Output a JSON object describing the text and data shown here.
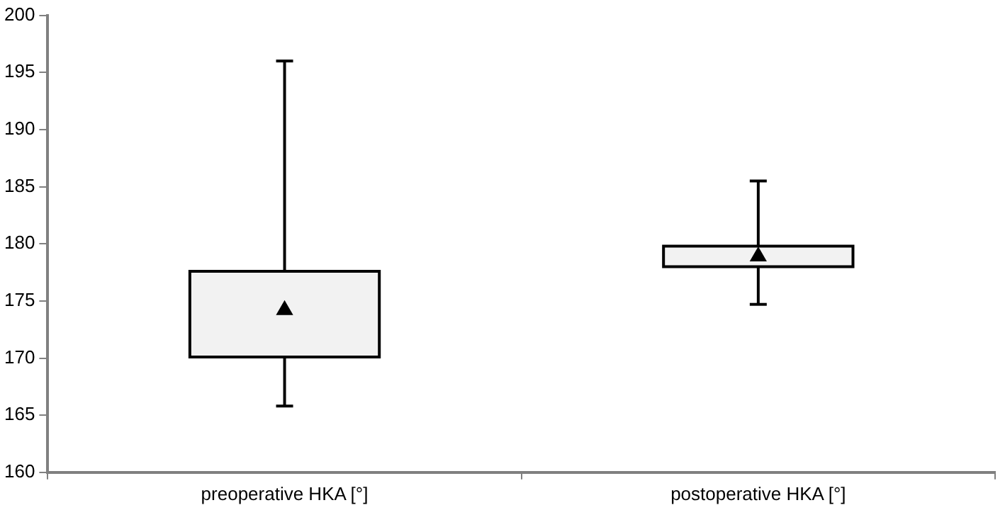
{
  "chart_data": {
    "type": "box",
    "categories": [
      "preoperative HKA [°]",
      "postoperative HKA [°]"
    ],
    "boxes": [
      {
        "low": 165.8,
        "q1": 170.1,
        "q3": 177.6,
        "high": 196.0,
        "mean": 174.2
      },
      {
        "low": 174.7,
        "q1": 178.0,
        "q3": 179.8,
        "high": 185.5,
        "mean": 178.9
      }
    ],
    "color": "#f2f2f2",
    "marker": "triangle",
    "grid": false,
    "legend": false,
    "ylim": [
      160,
      200
    ],
    "yticks": [
      160,
      165,
      170,
      175,
      180,
      185,
      190,
      195,
      200
    ]
  }
}
